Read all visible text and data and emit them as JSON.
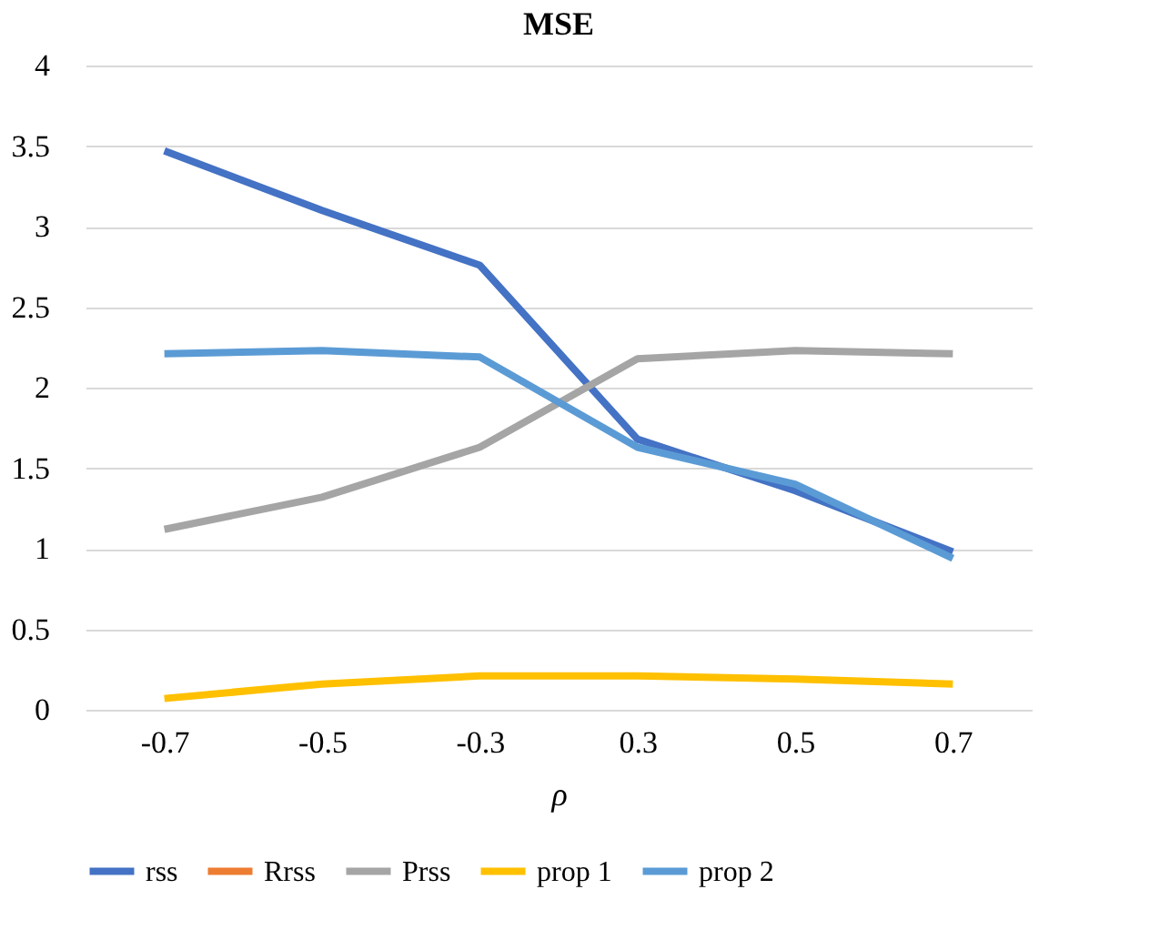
{
  "chart_data": {
    "type": "line",
    "title": "MSE",
    "xlabel": "ρ",
    "categories": [
      "-0.7",
      "-0.5",
      "-0.3",
      "0.3",
      "0.5",
      "0.7"
    ],
    "series": [
      {
        "name": "rss",
        "color": "#4472c4",
        "values": [
          3.47,
          3.1,
          2.76,
          1.68,
          1.36,
          0.98
        ]
      },
      {
        "name": "Rrss",
        "color": "#ed7d31",
        "values": [
          null,
          null,
          null,
          null,
          null,
          null
        ]
      },
      {
        "name": "Prss",
        "color": "#a5a5a5",
        "values": [
          1.12,
          1.32,
          1.63,
          2.18,
          2.23,
          2.21
        ]
      },
      {
        "name": "prop 1",
        "color": "#ffc000",
        "values": [
          0.07,
          0.16,
          0.21,
          0.21,
          0.19,
          0.16
        ]
      },
      {
        "name": "prop 2",
        "color": "#5b9bd5",
        "values": [
          2.21,
          2.23,
          2.19,
          1.63,
          1.4,
          0.94
        ]
      }
    ],
    "ylim": [
      0,
      4
    ],
    "yticks": [
      0,
      0.5,
      1,
      1.5,
      2,
      2.5,
      3,
      3.5,
      4
    ],
    "grid": "y",
    "legend": "bottom",
    "marker": "none",
    "line_style": "solid"
  }
}
